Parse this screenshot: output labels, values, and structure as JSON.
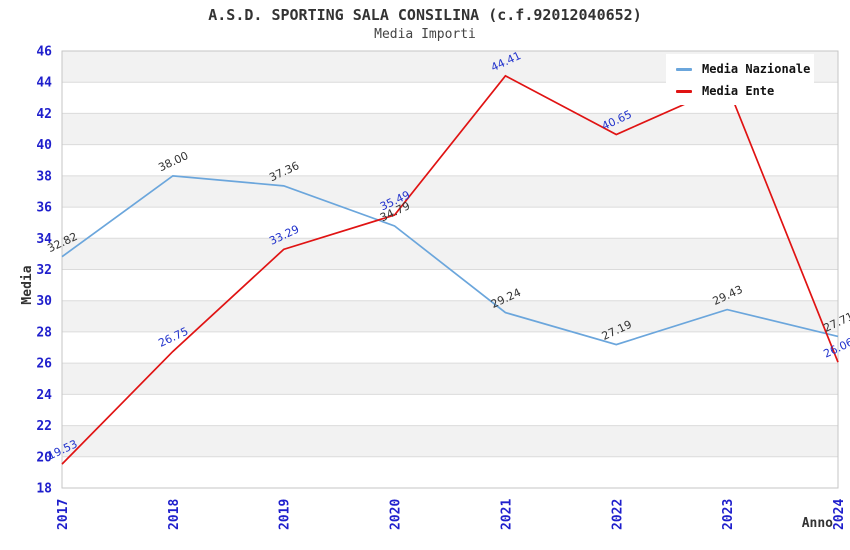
{
  "header": {
    "title": "A.S.D. SPORTING SALA CONSILINA (c.f.92012040652)",
    "subtitle": "Media Importi"
  },
  "legend": {
    "items": [
      {
        "label": "Media Nazionale",
        "color": "#6BA6DC"
      },
      {
        "label": "Media Ente",
        "color": "#E01313"
      }
    ]
  },
  "chart_data": {
    "type": "line",
    "x": [
      2017,
      2018,
      2019,
      2020,
      2021,
      2022,
      2023,
      2024
    ],
    "xlabel": "Anno",
    "ylabel": "Media",
    "ylim": [
      18,
      46
    ],
    "ytick_step": 2,
    "grid": true,
    "legend_position": "top-right",
    "series": [
      {
        "name": "Media Nazionale",
        "color": "#6BA6DC",
        "label_color": "#333333",
        "values": [
          32.82,
          38.0,
          37.36,
          34.79,
          29.24,
          27.19,
          29.43,
          27.71
        ],
        "labels": [
          "32.82",
          "38.00",
          "37.36",
          "34.79",
          "29.24",
          "27.19",
          "29.43",
          "27.71"
        ]
      },
      {
        "name": "Media Ente",
        "color": "#E01313",
        "label_color": "#2233CC",
        "values": [
          19.53,
          26.75,
          33.29,
          35.49,
          44.41,
          40.65,
          43.8,
          26.06
        ],
        "labels": [
          "19.53",
          "26.75",
          "33.29",
          "35.49",
          "44.41",
          "40.65",
          null,
          "26.06"
        ]
      }
    ],
    "colors": {
      "band": "#F2F2F2",
      "grid": "#DBDBDB",
      "border": "#C6C6C6",
      "tick_label": "#1F1FCC"
    }
  }
}
